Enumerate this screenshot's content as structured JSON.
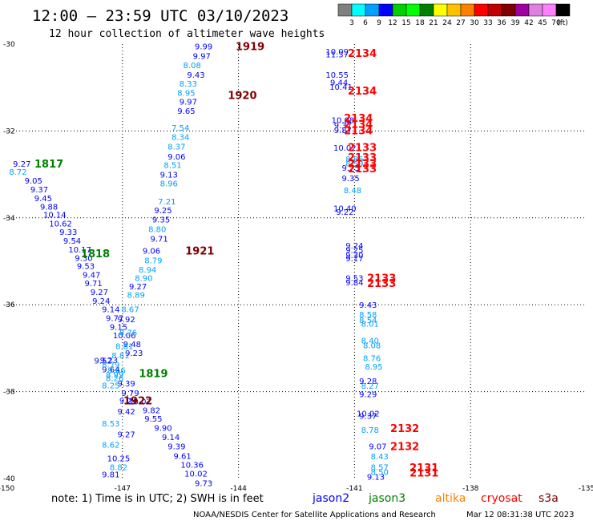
{
  "title": "12:00 – 23:59 UTC 03/10/2023",
  "subtitle": "12 hour collection of altimeter wave heights",
  "note": "note:  1) Time is in UTC;  2) SWH is in feet",
  "credit": "NOAA/NESDIS Center for Satellite Applications and Research",
  "timestamp": "Mar 12 08:31:38 UTC 2023",
  "colorbar": {
    "unit": "(ft)",
    "labels": [
      "3",
      "6",
      "9",
      "12",
      "15",
      "18",
      "21",
      "24",
      "27",
      "30",
      "33",
      "36",
      "39",
      "42",
      "45",
      "70"
    ],
    "colors": [
      "#808080",
      "#00ffff",
      "#00a0ff",
      "#0000ff",
      "#00d000",
      "#00ff00",
      "#008000",
      "#ffff00",
      "#ffc000",
      "#ff8000",
      "#ff0000",
      "#c00000",
      "#800000",
      "#a000a0",
      "#e080e0",
      "#ff80ff",
      "#000000"
    ]
  },
  "satellites": [
    {
      "name": "jason2",
      "color": "#0000ff"
    },
    {
      "name": "jason3",
      "color": "#008000"
    },
    {
      "name": "altika",
      "color": "#ff8000"
    },
    {
      "name": "cryosat",
      "color": "#ff0000"
    },
    {
      "name": "s3a",
      "color": "#800000"
    }
  ],
  "chart_data": {
    "type": "scatter",
    "xlim": [
      -150,
      -135
    ],
    "ylim": [
      -40,
      -30
    ],
    "x_ticks": [
      "-150",
      "-147",
      "-144",
      "-141",
      "-138",
      "-135"
    ],
    "y_ticks": [
      "-30",
      "-32",
      "-34",
      "-36",
      "-38",
      "-40"
    ],
    "grid": true,
    "track_times": [
      {
        "text": "1919",
        "lon": -143.7,
        "lat": -30.05,
        "color": "#800000"
      },
      {
        "text": "1920",
        "lon": -143.9,
        "lat": -31.17,
        "color": "#800000"
      },
      {
        "text": "1921",
        "lon": -145.0,
        "lat": -34.75,
        "color": "#800000"
      },
      {
        "text": "1922",
        "lon": -146.6,
        "lat": -38.2,
        "color": "#800000"
      },
      {
        "text": "1817",
        "lon": -148.9,
        "lat": -32.75,
        "color": "#008000"
      },
      {
        "text": "1818",
        "lon": -147.7,
        "lat": -34.82,
        "color": "#008000"
      },
      {
        "text": "1819",
        "lon": -146.2,
        "lat": -37.57,
        "color": "#008000"
      },
      {
        "text": "2134",
        "lon": -140.8,
        "lat": -30.2,
        "color": "#ff0000"
      },
      {
        "text": "2134",
        "lon": -140.8,
        "lat": -31.07,
        "color": "#ff0000"
      },
      {
        "text": "2134",
        "lon": -140.9,
        "lat": -31.7,
        "color": "#ff0000"
      },
      {
        "text": "2134",
        "lon": -140.9,
        "lat": -31.84,
        "color": "#ff0000"
      },
      {
        "text": "2134",
        "lon": -140.9,
        "lat": -31.98,
        "color": "#ff0000"
      },
      {
        "text": "2133",
        "lon": -140.8,
        "lat": -32.37,
        "color": "#ff0000"
      },
      {
        "text": "2133",
        "lon": -140.8,
        "lat": -32.6,
        "color": "#ff0000"
      },
      {
        "text": "2133",
        "lon": -140.8,
        "lat": -32.74,
        "color": "#ff0000"
      },
      {
        "text": "2133",
        "lon": -140.8,
        "lat": -32.86,
        "color": "#ff0000"
      },
      {
        "text": "2133",
        "lon": -140.3,
        "lat": -35.38,
        "color": "#ff0000"
      },
      {
        "text": "2133",
        "lon": -140.3,
        "lat": -35.5,
        "color": "#ff0000"
      },
      {
        "text": "2132",
        "lon": -139.7,
        "lat": -38.84,
        "color": "#ff0000"
      },
      {
        "text": "2132",
        "lon": -139.7,
        "lat": -39.25,
        "color": "#ff0000"
      },
      {
        "text": "2131",
        "lon": -139.2,
        "lat": -39.74,
        "color": "#ff0000"
      },
      {
        "text": "2131",
        "lon": -139.2,
        "lat": -39.86,
        "color": "#ff0000"
      }
    ],
    "series": [
      {
        "name": "jason2",
        "color": "#0000ff",
        "points": [
          {
            "lon": -144.9,
            "lat": -30.05,
            "swh": "9.99"
          },
          {
            "lon": -144.95,
            "lat": -30.27,
            "swh": "9.97"
          },
          {
            "lon": -145.1,
            "lat": -30.7,
            "swh": "9.43"
          },
          {
            "lon": -145.3,
            "lat": -31.32,
            "swh": "9.97"
          },
          {
            "lon": -145.35,
            "lat": -31.53,
            "swh": "9.65"
          },
          {
            "lon": -145.6,
            "lat": -32.58,
            "swh": "9.06"
          },
          {
            "lon": -145.8,
            "lat": -33.0,
            "swh": "9.13"
          },
          {
            "lon": -145.95,
            "lat": -33.82,
            "swh": "9.25"
          },
          {
            "lon": -146.0,
            "lat": -34.03,
            "swh": "9.35"
          },
          {
            "lon": -146.05,
            "lat": -34.47,
            "swh": "9.71"
          },
          {
            "lon": -146.25,
            "lat": -34.75,
            "swh": "9.06"
          },
          {
            "lon": -146.6,
            "lat": -35.57,
            "swh": "9.27"
          },
          {
            "lon": -146.9,
            "lat": -36.33,
            "swh": "9.92"
          },
          {
            "lon": -147.35,
            "lat": -37.27,
            "swh": "9.23"
          },
          {
            "lon": -147.3,
            "lat": -37.48,
            "swh": "9.64"
          },
          {
            "lon": -146.9,
            "lat": -37.8,
            "swh": "9.39"
          },
          {
            "lon": -146.8,
            "lat": -38.03,
            "swh": "9.79"
          },
          {
            "lon": -146.55,
            "lat": -38.22,
            "swh": "10.02"
          },
          {
            "lon": -146.25,
            "lat": -38.42,
            "swh": "9.82"
          },
          {
            "lon": -146.2,
            "lat": -38.62,
            "swh": "9.55"
          },
          {
            "lon": -145.95,
            "lat": -38.83,
            "swh": "9.90"
          },
          {
            "lon": -145.75,
            "lat": -39.04,
            "swh": "9.14"
          },
          {
            "lon": -145.6,
            "lat": -39.25,
            "swh": "9.39"
          },
          {
            "lon": -145.45,
            "lat": -39.47,
            "swh": "9.61"
          },
          {
            "lon": -145.2,
            "lat": -39.68,
            "swh": "10.36"
          },
          {
            "lon": -145.1,
            "lat": -39.88,
            "swh": "10.02"
          },
          {
            "lon": -144.9,
            "lat": -40.1,
            "swh": "9.73"
          },
          {
            "lon": -149.6,
            "lat": -32.75,
            "swh": "9.27"
          },
          {
            "lon": -149.3,
            "lat": -33.14,
            "swh": "9.05"
          },
          {
            "lon": -149.15,
            "lat": -33.34,
            "swh": "9.37"
          },
          {
            "lon": -149.05,
            "lat": -33.54,
            "swh": "9.45"
          },
          {
            "lon": -148.9,
            "lat": -33.74,
            "swh": "9.88"
          },
          {
            "lon": -148.75,
            "lat": -33.92,
            "swh": "10.14"
          },
          {
            "lon": -148.6,
            "lat": -34.12,
            "swh": "10.62"
          },
          {
            "lon": -148.4,
            "lat": -34.32,
            "swh": "9.33"
          },
          {
            "lon": -148.3,
            "lat": -34.52,
            "swh": "9.54"
          },
          {
            "lon": -148.1,
            "lat": -34.72,
            "swh": "10.17"
          },
          {
            "lon": -148.0,
            "lat": -34.92,
            "swh": "9.30"
          },
          {
            "lon": -147.95,
            "lat": -35.1,
            "swh": "9.53"
          },
          {
            "lon": -147.8,
            "lat": -35.3,
            "swh": "9.47"
          },
          {
            "lon": -147.75,
            "lat": -35.5,
            "swh": "9.71"
          },
          {
            "lon": -147.6,
            "lat": -35.7,
            "swh": "9.27"
          },
          {
            "lon": -147.55,
            "lat": -35.9,
            "swh": "9.24"
          },
          {
            "lon": -147.3,
            "lat": -36.1,
            "swh": "9.14"
          },
          {
            "lon": -147.2,
            "lat": -36.3,
            "swh": "9.77"
          },
          {
            "lon": -147.1,
            "lat": -36.5,
            "swh": "9.15"
          },
          {
            "lon": -146.95,
            "lat": -36.7,
            "swh": "10.06"
          },
          {
            "lon": -146.75,
            "lat": -36.9,
            "swh": "9.48"
          },
          {
            "lon": -146.7,
            "lat": -37.1,
            "swh": "9.23"
          },
          {
            "lon": -147.5,
            "lat": -37.28,
            "swh": "9.52"
          },
          {
            "lon": -146.85,
            "lat": -38.2,
            "swh": "9.24"
          },
          {
            "lon": -146.9,
            "lat": -38.45,
            "swh": "9.42"
          },
          {
            "lon": -146.9,
            "lat": -38.98,
            "swh": "9.27"
          },
          {
            "lon": -147.1,
            "lat": -39.53,
            "swh": "10.25"
          },
          {
            "lon": -147.3,
            "lat": -39.9,
            "swh": "9.81"
          },
          {
            "lon": -141.45,
            "lat": -30.17,
            "swh": "10.09"
          },
          {
            "lon": -141.45,
            "lat": -30.23,
            "swh": "11.37"
          },
          {
            "lon": -141.45,
            "lat": -30.7,
            "swh": "10.55"
          },
          {
            "lon": -141.4,
            "lat": -30.88,
            "swh": "9.44"
          },
          {
            "lon": -141.35,
            "lat": -30.98,
            "swh": "10.41"
          },
          {
            "lon": -141.3,
            "lat": -31.74,
            "swh": "10.08"
          },
          {
            "lon": -141.3,
            "lat": -31.86,
            "swh": "9.37"
          },
          {
            "lon": -141.3,
            "lat": -31.97,
            "swh": "9.87"
          },
          {
            "lon": -141.25,
            "lat": -32.38,
            "swh": "10.02"
          },
          {
            "lon": -141.1,
            "lat": -32.84,
            "swh": "9.75"
          },
          {
            "lon": -141.1,
            "lat": -33.08,
            "swh": "9.35"
          },
          {
            "lon": -141.25,
            "lat": -33.77,
            "swh": "10.40"
          },
          {
            "lon": -141.25,
            "lat": -33.86,
            "swh": "9.22"
          },
          {
            "lon": -141.0,
            "lat": -34.63,
            "swh": "9.24"
          },
          {
            "lon": -141.0,
            "lat": -34.73,
            "swh": "9.25"
          },
          {
            "lon": -141.0,
            "lat": -34.85,
            "swh": "9.30"
          },
          {
            "lon": -141.0,
            "lat": -34.93,
            "swh": "9.17"
          },
          {
            "lon": -141.0,
            "lat": -35.38,
            "swh": "9.53"
          },
          {
            "lon": -141.0,
            "lat": -35.48,
            "swh": "9.84"
          },
          {
            "lon": -140.65,
            "lat": -36.0,
            "swh": "9.43"
          },
          {
            "lon": -140.65,
            "lat": -37.75,
            "swh": "9.28"
          },
          {
            "lon": -140.65,
            "lat": -38.05,
            "swh": "9.29"
          },
          {
            "lon": -140.65,
            "lat": -38.5,
            "swh": "10.02"
          },
          {
            "lon": -140.65,
            "lat": -38.55,
            "swh": "9.37"
          },
          {
            "lon": -140.4,
            "lat": -39.25,
            "swh": "9.07"
          },
          {
            "lon": -140.45,
            "lat": -39.95,
            "swh": "9.13"
          }
        ]
      },
      {
        "name": "jason3",
        "color": "#00a0ff",
        "points": [
          {
            "lon": -145.2,
            "lat": -30.48,
            "swh": "8.08"
          },
          {
            "lon": -145.3,
            "lat": -30.9,
            "swh": "8.33"
          },
          {
            "lon": -145.35,
            "lat": -31.12,
            "swh": "8.95"
          },
          {
            "lon": -145.5,
            "lat": -31.92,
            "swh": "7.54"
          },
          {
            "lon": -145.5,
            "lat": -32.13,
            "swh": "8.34"
          },
          {
            "lon": -145.6,
            "lat": -32.35,
            "swh": "8.37"
          },
          {
            "lon": -145.7,
            "lat": -32.78,
            "swh": "8.51"
          },
          {
            "lon": -145.8,
            "lat": -33.2,
            "swh": "8.96"
          },
          {
            "lon": -145.85,
            "lat": -33.62,
            "swh": "7.21"
          },
          {
            "lon": -146.1,
            "lat": -34.25,
            "swh": "8.80"
          },
          {
            "lon": -146.2,
            "lat": -34.97,
            "swh": "8.79"
          },
          {
            "lon": -146.35,
            "lat": -35.18,
            "swh": "8.94"
          },
          {
            "lon": -146.45,
            "lat": -35.38,
            "swh": "8.90"
          },
          {
            "lon": -146.65,
            "lat": -35.77,
            "swh": "8.89"
          },
          {
            "lon": -146.8,
            "lat": -36.1,
            "swh": "8.67"
          },
          {
            "lon": -146.85,
            "lat": -36.63,
            "swh": "8.76"
          },
          {
            "lon": -146.95,
            "lat": -36.95,
            "swh": "8.81"
          },
          {
            "lon": -147.05,
            "lat": -37.16,
            "swh": "8.81"
          },
          {
            "lon": -147.15,
            "lat": -37.5,
            "swh": "9.66"
          },
          {
            "lon": -147.3,
            "lat": -37.37,
            "swh": "8.79"
          },
          {
            "lon": -147.2,
            "lat": -37.6,
            "swh": "8.99"
          },
          {
            "lon": -147.2,
            "lat": -37.68,
            "swh": "8.26"
          },
          {
            "lon": -147.3,
            "lat": -37.85,
            "swh": "8.25"
          },
          {
            "lon": -147.3,
            "lat": -38.73,
            "swh": "8.53"
          },
          {
            "lon": -147.3,
            "lat": -39.22,
            "swh": "8.62"
          },
          {
            "lon": -147.1,
            "lat": -39.73,
            "swh": "8.82"
          },
          {
            "lon": -149.7,
            "lat": -32.93,
            "swh": "8.72"
          },
          {
            "lon": -141.0,
            "lat": -32.64,
            "swh": "8.86"
          },
          {
            "lon": -141.0,
            "lat": -32.74,
            "swh": "8.59"
          },
          {
            "lon": -141.05,
            "lat": -33.36,
            "swh": "8.48"
          },
          {
            "lon": -140.65,
            "lat": -36.22,
            "swh": "8.58"
          },
          {
            "lon": -140.65,
            "lat": -36.35,
            "swh": "8.54"
          },
          {
            "lon": -140.6,
            "lat": -36.43,
            "swh": "8.01"
          },
          {
            "lon": -140.6,
            "lat": -36.82,
            "swh": "8.40"
          },
          {
            "lon": -140.55,
            "lat": -36.93,
            "swh": "8.08"
          },
          {
            "lon": -140.55,
            "lat": -37.22,
            "swh": "8.76"
          },
          {
            "lon": -140.5,
            "lat": -37.42,
            "swh": "8.95"
          },
          {
            "lon": -140.6,
            "lat": -37.86,
            "swh": "8.27"
          },
          {
            "lon": -140.6,
            "lat": -38.87,
            "swh": "8.78"
          },
          {
            "lon": -140.35,
            "lat": -39.48,
            "swh": "8.43"
          },
          {
            "lon": -140.35,
            "lat": -39.73,
            "swh": "8.57"
          },
          {
            "lon": -140.35,
            "lat": -39.84,
            "swh": "8.50"
          }
        ]
      }
    ]
  }
}
